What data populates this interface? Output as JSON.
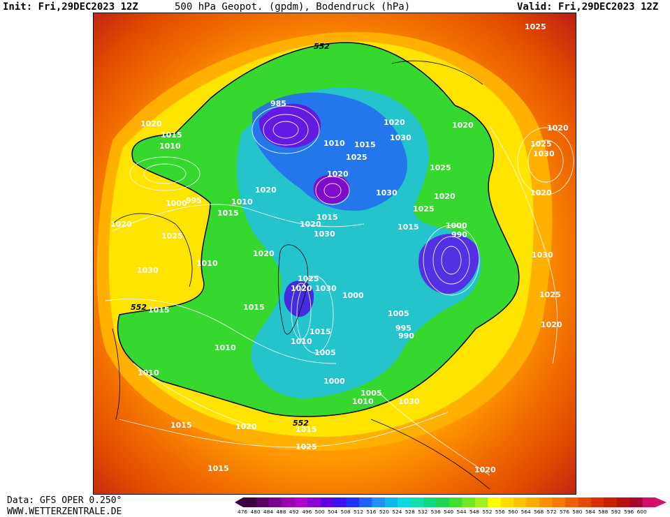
{
  "header": {
    "init": "Init: Fri,29DEC2023 12Z",
    "title": "500 hPa Geopot. (gpdm), Bodendruck (hPa)",
    "valid": "Valid: Fri,29DEC2023 12Z"
  },
  "footer": {
    "data_source": "Data: GFS OPER 0.250°",
    "site": "WWW.WETTERZENTRALE.DE"
  },
  "scale": {
    "levels": [
      476,
      480,
      484,
      488,
      492,
      496,
      500,
      504,
      508,
      512,
      516,
      520,
      524,
      528,
      532,
      536,
      540,
      544,
      548,
      552,
      556,
      560,
      564,
      568,
      572,
      576,
      580,
      584,
      588,
      592,
      596,
      600
    ],
    "colors": [
      "#3a0040",
      "#5a0060",
      "#7a0090",
      "#9a00b0",
      "#b000d0",
      "#8c00d8",
      "#6000e0",
      "#3c10f0",
      "#2030f8",
      "#2060f8",
      "#2090f8",
      "#10b8f0",
      "#10d8e0",
      "#10e0b0",
      "#10d880",
      "#20d850",
      "#40e030",
      "#70e820",
      "#a0ee20",
      "#ffff00",
      "#ffdc00",
      "#ffc000",
      "#ffa800",
      "#ff9000",
      "#f87800",
      "#f06000",
      "#e84800",
      "#d83000",
      "#c82000",
      "#b81010",
      "#a80830",
      "#d0106a"
    ]
  },
  "contour_labels": {
    "height_552": [
      "552",
      "552",
      "552"
    ],
    "isobars": [
      "985",
      "1010",
      "1015",
      "1020",
      "1030",
      "1025",
      "1020",
      "1030",
      "1015",
      "1020",
      "1030",
      "1020",
      "1025",
      "1015",
      "1000",
      "990",
      "1030",
      "1025",
      "1020",
      "1025",
      "1030",
      "1020",
      "1015",
      "1020",
      "1010",
      "995",
      "1000",
      "1015",
      "1010",
      "1020",
      "1020",
      "1025",
      "1030",
      "1015",
      "1015",
      "1010",
      "1010",
      "1010",
      "1025",
      "1020",
      "1030",
      "1000",
      "1005",
      "995",
      "990",
      "1015",
      "1010",
      "1005",
      "1000",
      "1005",
      "1010",
      "1015",
      "1015",
      "1020",
      "1025",
      "1015",
      "1020",
      "1020",
      "1025",
      "1020",
      "1030",
      "1025",
      "1020"
    ]
  }
}
